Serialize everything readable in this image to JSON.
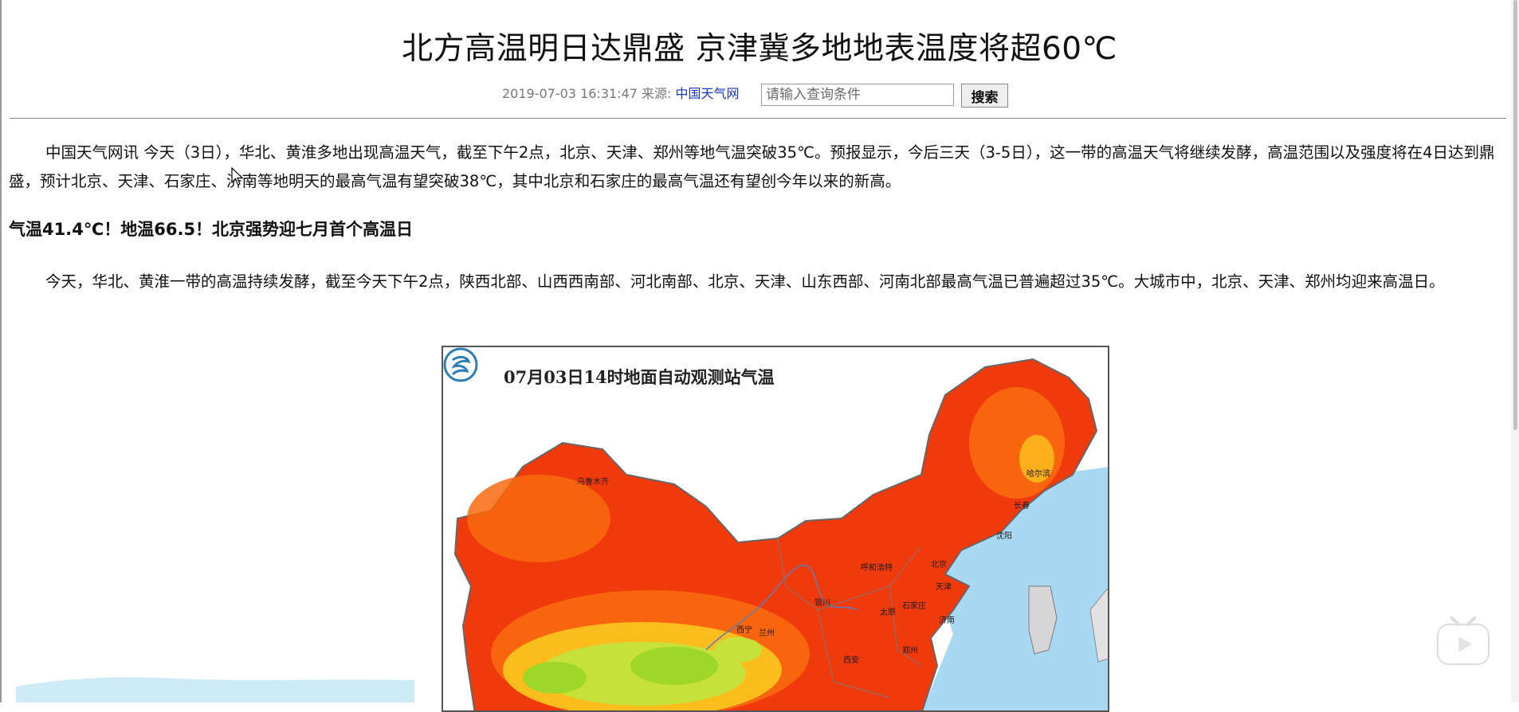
{
  "article": {
    "title": "北方高温明日达鼎盛 京津冀多地地表温度将超60℃",
    "datetime": "2019-07-03 16:31:47",
    "source_label": "来源:",
    "source_name": "中国天气网",
    "paragraphs": [
      "中国天气网讯 今天（3日），华北、黄淮多地出现高温天气，截至下午2点，北京、天津、郑州等地气温突破35℃。预报显示，今后三天（3-5日），这一带的高温天气将继续发酵，高温范围以及强度将在4日达到鼎盛，预计北京、天津、石家庄、济南等地明天的最高气温有望突破38℃，其中北京和石家庄的最高气温还有望创今年以来的新高。",
      "今天，华北、黄淮一带的高温持续发酵，截至今天下午2点，陕西北部、山西西南部、河北南部、北京、天津、山东西部、河南北部最高气温已普遍超过35℃。大城市中，北京、天津、郑州均迎来高温日。"
    ],
    "subheading": "气温41.4℃！地温66.5！北京强势迎七月首个高温日"
  },
  "search": {
    "placeholder": "请输入查询条件",
    "button_label": "搜索"
  },
  "map_figure": {
    "title": "07月03日14时地面自动观测站气温",
    "cities": {
      "urumqi": "乌鲁木齐",
      "harbin": "哈尔滨",
      "changchun": "长春",
      "shenyang": "沈阳",
      "hohhot": "呼和浩特",
      "beijing": "北京",
      "tianjin": "天津",
      "taiyuan": "太原",
      "shijiazhuang": "石家庄",
      "jinan": "济南",
      "yinchuan": "银川",
      "lanzhou": "兰州",
      "xining": "西宁",
      "zhengzhou": "郑州",
      "xian": "西安"
    },
    "colors": {
      "hot": "#f03a0c",
      "warm": "#f86a0e",
      "mild": "#fbc21c",
      "cool": "#9ed62a",
      "sea": "#a9d8f2"
    }
  },
  "icons": {
    "cursor": "mouse-pointer-icon",
    "video": "video-player-icon",
    "logo": "cma-logo-icon"
  }
}
